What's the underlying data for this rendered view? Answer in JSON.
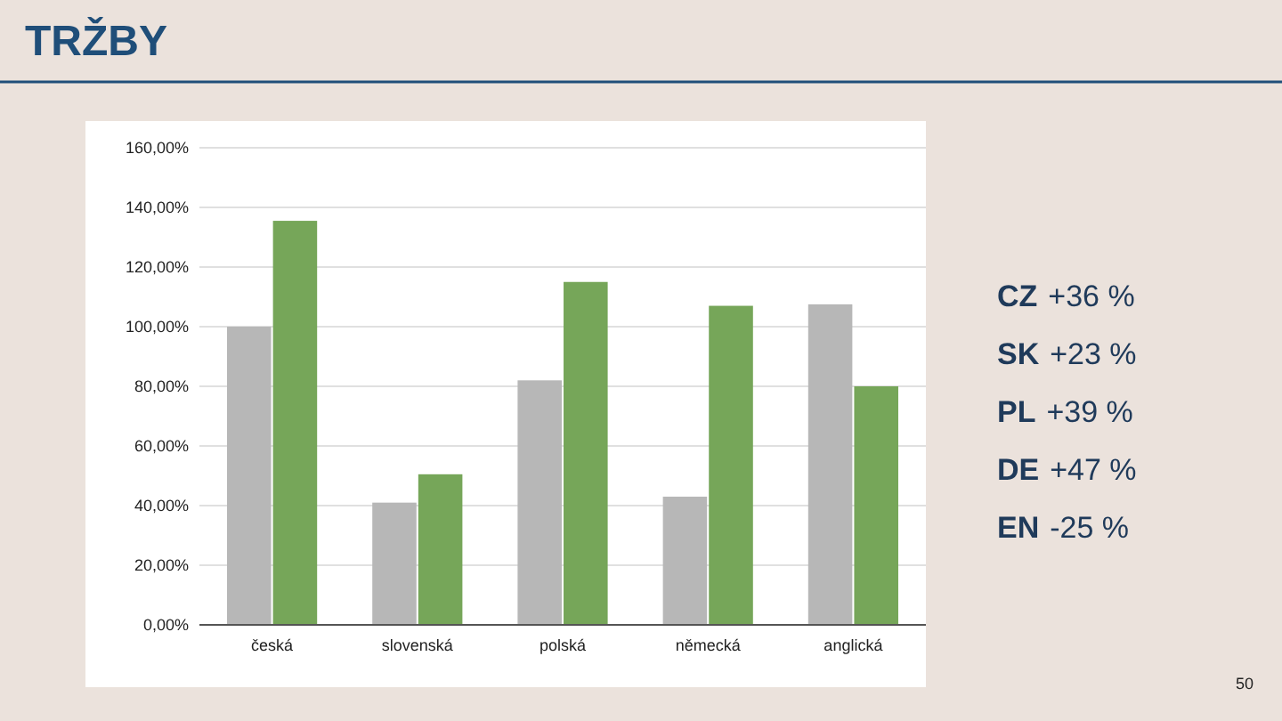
{
  "chart_data": {
    "type": "bar",
    "title": "TRŽBY",
    "categories": [
      "česká",
      "slovenská",
      "polská",
      "německá",
      "anglická"
    ],
    "series": [
      {
        "color": "#b7b7b7",
        "values": [
          100,
          41,
          82,
          43,
          107.5
        ]
      },
      {
        "color": "#76a659",
        "values": [
          135.5,
          50.5,
          115,
          107,
          80
        ]
      }
    ],
    "ylim": [
      0,
      160
    ],
    "yticks": [
      {
        "value": 0,
        "label": "0,00%"
      },
      {
        "value": 20,
        "label": "20,00%"
      },
      {
        "value": 40,
        "label": "40,00%"
      },
      {
        "value": 60,
        "label": "60,00%"
      },
      {
        "value": 80,
        "label": "80,00%"
      },
      {
        "value": 100,
        "label": "100,00%"
      },
      {
        "value": 120,
        "label": "120,00%"
      },
      {
        "value": 140,
        "label": "140,00%"
      },
      {
        "value": 160,
        "label": "160,00%"
      }
    ],
    "grid": "y",
    "annotations": [
      "CZ +36 %",
      "SK +23 %",
      "PL +39 %",
      "DE +47 %",
      "EN -25 %",
      "50"
    ]
  }
}
